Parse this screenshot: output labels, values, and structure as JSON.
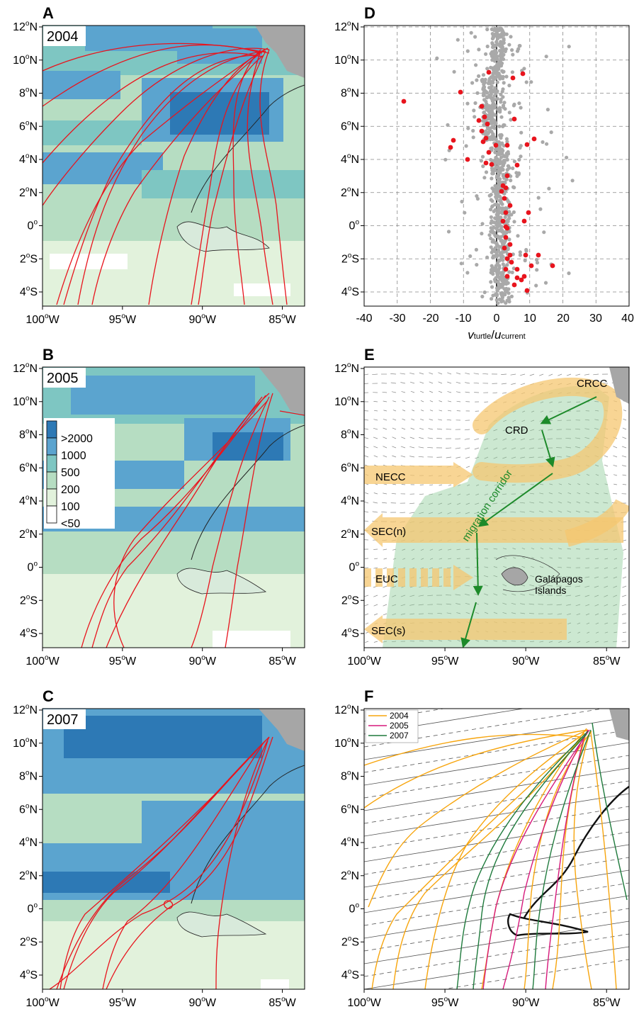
{
  "axes": {
    "lat_labels": [
      "12",
      "10",
      "8",
      "6",
      "4",
      "2",
      "0",
      "2",
      "4"
    ],
    "lat_suffix": [
      "N",
      "N",
      "N",
      "N",
      "N",
      "N",
      "",
      "S",
      "S"
    ],
    "lon_labels": [
      "100",
      "95",
      "90",
      "85"
    ],
    "lon_suffix": "W",
    "degree_mark": "o"
  },
  "panels": [
    {
      "letter": "A",
      "year": "2004"
    },
    {
      "letter": "B",
      "year": "2005"
    },
    {
      "letter": "C",
      "year": "2007"
    },
    {
      "letter": "D"
    },
    {
      "letter": "E"
    },
    {
      "letter": "F"
    }
  ],
  "legend_B": {
    "labels": [
      ">2000",
      "1000",
      "500",
      "200",
      "100",
      "<50"
    ],
    "colors": [
      "#2d79b5",
      "#5ba4cf",
      "#7ec6c2",
      "#b6ddc2",
      "#e2f2dc",
      "#ffffff"
    ]
  },
  "panel_D": {
    "xticks": [
      "-40",
      "-30",
      "-20",
      "-10",
      "0",
      "10",
      "20",
      "30",
      "40"
    ],
    "xlabel_v": "v",
    "xlabel_v_sub": "turtle",
    "xlabel_sep": "/",
    "xlabel_u": "u",
    "xlabel_u_sub": "current",
    "colors": {
      "all": "#a9a9a9",
      "highlight": "#e8141d"
    }
  },
  "panel_E": {
    "labels": {
      "crcc": "CRCC",
      "crd": "CRD",
      "necc": "NECC",
      "secn": "SEC(n)",
      "euc": "EUC",
      "secs": "SEC(s)",
      "corridor": "migration corridor",
      "galapagos_1": "Galápagos",
      "galapagos_2": "Islands"
    },
    "colors": {
      "current": "#f5c770",
      "corridor": "#8fcc9a",
      "arrow": "#1d8a2a"
    }
  },
  "panel_F": {
    "legend": [
      {
        "name": "2004",
        "color": "#f7a50d"
      },
      {
        "name": "2005",
        "color": "#d6197b"
      },
      {
        "name": "2007",
        "color": "#1e7a3c"
      }
    ]
  },
  "colors": {
    "track_red": "#e8141d",
    "land": "#a6a6a6",
    "chl": [
      "#2d79b5",
      "#5ba4cf",
      "#7ec6c2",
      "#b6ddc2",
      "#e2f2dc"
    ]
  }
}
